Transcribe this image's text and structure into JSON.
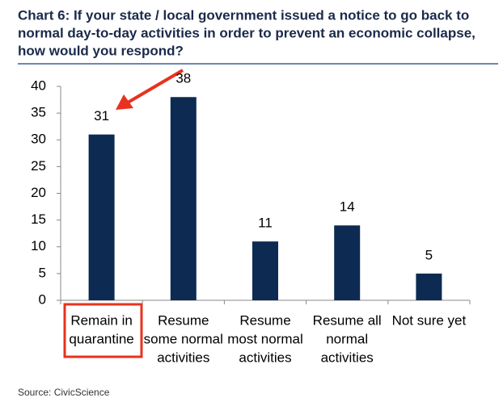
{
  "chart_data": {
    "type": "bar",
    "title": [
      "Chart 6: If your state / local government issued a notice to go back to",
      "normal day-to-day activities in order to prevent an economic collapse,",
      "how would you respond?"
    ],
    "categories": [
      [
        "Remain in",
        "quarantine"
      ],
      [
        "Resume",
        "some normal",
        "activities"
      ],
      [
        "Resume",
        "most normal",
        "activities"
      ],
      [
        "Resume all",
        "normal",
        "activities"
      ],
      [
        "Not sure yet"
      ]
    ],
    "values": [
      31,
      38,
      11,
      14,
      5
    ],
    "color": "#0d2b52",
    "ylim": [
      0,
      40
    ],
    "yticks": [
      0,
      5,
      10,
      15,
      20,
      25,
      30,
      35,
      40
    ],
    "source": "Source: CivicScience"
  }
}
